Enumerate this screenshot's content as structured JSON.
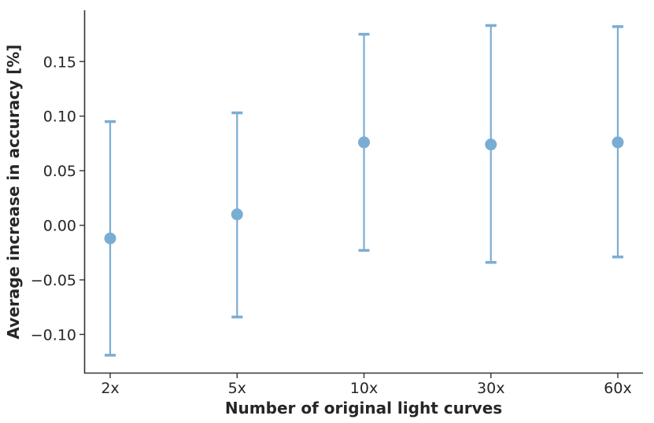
{
  "chart_data": {
    "type": "scatter",
    "subtype": "errorbar",
    "title": "",
    "xlabel": "Number of original light curves",
    "ylabel": "Average increase in accuracy   [%]",
    "categories": [
      "2x",
      "5x",
      "10x",
      "30x",
      "60x"
    ],
    "series": [
      {
        "values": [
          -0.012,
          0.01,
          0.076,
          0.074,
          0.076
        ],
        "err_low": [
          -0.119,
          -0.084,
          -0.023,
          -0.034,
          -0.029
        ],
        "err_high": [
          0.095,
          0.103,
          0.175,
          0.183,
          0.182
        ],
        "color": "#7aadd4"
      }
    ],
    "ylim": [
      -0.135,
      0.197
    ],
    "yticks": [
      -0.1,
      -0.05,
      0.0,
      0.05,
      0.1,
      0.15
    ],
    "ytick_labels": [
      "−0.10",
      "−0.05",
      "0.00",
      "0.05",
      "0.10",
      "0.15"
    ],
    "grid": false,
    "spines": "left-bottom"
  }
}
